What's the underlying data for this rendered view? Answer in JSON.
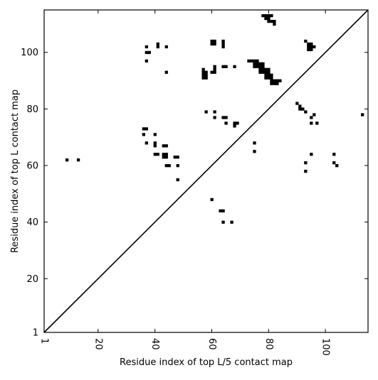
{
  "chart_data": {
    "type": "scatter",
    "marker": "square",
    "xlabel": "Residue index of top L/5 contact map",
    "ylabel": "Residue index of top L contact map",
    "xlim": [
      1,
      115
    ],
    "ylim": [
      1,
      115
    ],
    "xticks": [
      1,
      20,
      40,
      60,
      80,
      100
    ],
    "yticks": [
      1,
      20,
      40,
      60,
      80,
      100
    ],
    "xtick_rotation": -90,
    "diagonal": true,
    "grid": false,
    "colors": {
      "marker": "#000000",
      "axis": "#000000",
      "background": "#ffffff"
    },
    "points": [
      [
        9,
        62
      ],
      [
        13,
        62
      ],
      [
        36,
        73
      ],
      [
        37,
        73
      ],
      [
        36,
        71
      ],
      [
        37,
        68
      ],
      [
        37,
        97
      ],
      [
        37,
        100
      ],
      [
        38,
        100
      ],
      [
        37,
        102
      ],
      [
        40,
        71
      ],
      [
        40,
        68
      ],
      [
        40,
        67
      ],
      [
        40,
        64
      ],
      [
        41,
        64
      ],
      [
        41,
        102
      ],
      [
        41,
        103
      ],
      [
        43,
        67
      ],
      [
        44,
        67
      ],
      [
        43,
        64
      ],
      [
        44,
        64
      ],
      [
        43,
        63
      ],
      [
        44,
        63
      ],
      [
        44,
        60
      ],
      [
        45,
        60
      ],
      [
        44,
        93
      ],
      [
        44,
        102
      ],
      [
        47,
        63
      ],
      [
        48,
        63
      ],
      [
        48,
        60
      ],
      [
        48,
        55
      ],
      [
        57,
        94
      ],
      [
        57,
        93
      ],
      [
        58,
        93
      ],
      [
        57,
        92
      ],
      [
        58,
        92
      ],
      [
        57,
        91
      ],
      [
        58,
        91
      ],
      [
        58,
        79
      ],
      [
        60,
        48
      ],
      [
        60,
        104
      ],
      [
        61,
        104
      ],
      [
        60,
        103
      ],
      [
        61,
        103
      ],
      [
        61,
        95
      ],
      [
        61,
        94
      ],
      [
        60,
        93
      ],
      [
        61,
        93
      ],
      [
        61,
        79
      ],
      [
        61,
        77
      ],
      [
        63,
        44
      ],
      [
        64,
        44
      ],
      [
        64,
        40
      ],
      [
        64,
        104
      ],
      [
        64,
        103
      ],
      [
        64,
        102
      ],
      [
        64,
        95
      ],
      [
        65,
        95
      ],
      [
        64,
        77
      ],
      [
        65,
        77
      ],
      [
        65,
        75
      ],
      [
        67,
        40
      ],
      [
        68,
        95
      ],
      [
        68,
        75
      ],
      [
        69,
        75
      ],
      [
        68,
        74
      ],
      [
        73,
        97
      ],
      [
        74,
        97
      ],
      [
        75,
        97
      ],
      [
        76,
        97
      ],
      [
        75,
        96
      ],
      [
        76,
        96
      ],
      [
        75,
        95
      ],
      [
        76,
        95
      ],
      [
        75,
        68
      ],
      [
        75,
        65
      ],
      [
        77,
        96
      ],
      [
        78,
        96
      ],
      [
        77,
        95
      ],
      [
        78,
        95
      ],
      [
        77,
        94
      ],
      [
        78,
        94
      ],
      [
        77,
        93
      ],
      [
        78,
        93
      ],
      [
        79,
        94
      ],
      [
        80,
        94
      ],
      [
        79,
        93
      ],
      [
        80,
        93
      ],
      [
        79,
        92
      ],
      [
        80,
        92
      ],
      [
        79,
        91
      ],
      [
        80,
        91
      ],
      [
        81,
        92
      ],
      [
        81,
        91
      ],
      [
        81,
        90
      ],
      [
        82,
        90
      ],
      [
        83,
        90
      ],
      [
        84,
        90
      ],
      [
        81,
        89
      ],
      [
        82,
        89
      ],
      [
        83,
        89
      ],
      [
        78,
        113
      ],
      [
        79,
        113
      ],
      [
        80,
        113
      ],
      [
        81,
        113
      ],
      [
        79,
        112
      ],
      [
        80,
        112
      ],
      [
        80,
        111
      ],
      [
        81,
        111
      ],
      [
        82,
        111
      ],
      [
        82,
        110
      ],
      [
        90,
        82
      ],
      [
        91,
        81
      ],
      [
        91,
        80
      ],
      [
        92,
        80
      ],
      [
        93,
        79
      ],
      [
        93,
        104
      ],
      [
        94,
        103
      ],
      [
        95,
        103
      ],
      [
        96,
        102
      ],
      [
        94,
        102
      ],
      [
        95,
        102
      ],
      [
        94,
        101
      ],
      [
        95,
        101
      ],
      [
        93,
        61
      ],
      [
        93,
        58
      ],
      [
        95,
        77
      ],
      [
        95,
        75
      ],
      [
        96,
        78
      ],
      [
        97,
        75
      ],
      [
        95,
        64
      ],
      [
        103,
        64
      ],
      [
        103,
        61
      ],
      [
        104,
        60
      ],
      [
        113,
        78
      ]
    ]
  }
}
